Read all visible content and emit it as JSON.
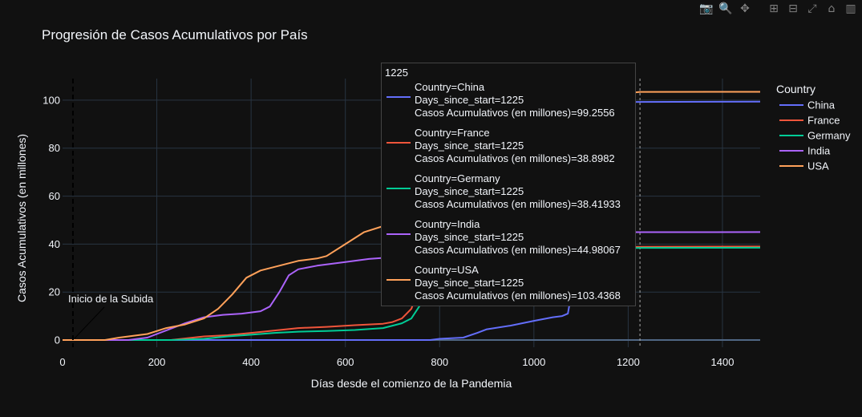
{
  "chart_data": {
    "type": "line",
    "title": "Progresión de Casos Acumulativos por País",
    "xlabel": "Días desde el comienzo de la Pandemia",
    "ylabel": "Casos Acumulativos (en millones)",
    "xlim": [
      0,
      1480
    ],
    "ylim": [
      -3,
      109
    ],
    "xticks": [
      0,
      200,
      400,
      600,
      800,
      1000,
      1200,
      1400
    ],
    "yticks": [
      0,
      20,
      40,
      60,
      80,
      100
    ],
    "grid": true,
    "legend": {
      "title": "Country",
      "placement": "right"
    },
    "annotations": [
      {
        "text": "Inicio de la Subida",
        "x": 22
      }
    ],
    "hover": {
      "x": 1225,
      "header": "1225",
      "entries": [
        {
          "country": "Country=China",
          "days": "Days_since_start=1225",
          "cases": "Casos Acumulativos (en millones)=99.2556"
        },
        {
          "country": "Country=France",
          "days": "Days_since_start=1225",
          "cases": "Casos Acumulativos (en millones)=38.8982"
        },
        {
          "country": "Country=Germany",
          "days": "Days_since_start=1225",
          "cases": "Casos Acumulativos (en millones)=38.41933"
        },
        {
          "country": "Country=India",
          "days": "Days_since_start=1225",
          "cases": "Casos Acumulativos (en millones)=44.98067"
        },
        {
          "country": "Country=USA",
          "days": "Days_since_start=1225",
          "cases": "Casos Acumulativos (en millones)=103.4368"
        }
      ]
    },
    "series": [
      {
        "name": "China",
        "color": "#636efa",
        "x": [
          0,
          780,
          800,
          850,
          880,
          900,
          950,
          1000,
          1040,
          1060,
          1072,
          1080,
          1085,
          1100,
          1140,
          1200,
          1225,
          1300,
          1480
        ],
        "y": [
          0,
          0,
          0.5,
          1,
          3,
          4.5,
          6,
          8,
          9.5,
          10,
          11,
          20,
          60,
          97,
          99,
          99.2,
          99.2556,
          99.3,
          99.4
        ]
      },
      {
        "name": "France",
        "color": "#ef553b",
        "x": [
          0,
          230,
          300,
          350,
          400,
          450,
          500,
          560,
          620,
          680,
          700,
          720,
          740,
          760,
          790,
          830,
          900,
          1000,
          1100,
          1225,
          1480
        ],
        "y": [
          0,
          0,
          1.5,
          2,
          3,
          4,
          5,
          5.5,
          6.2,
          6.8,
          7.5,
          9,
          13,
          24,
          34,
          37,
          38,
          38.5,
          38.7,
          38.8982,
          39
        ]
      },
      {
        "name": "Germany",
        "color": "#00cc96",
        "x": [
          0,
          230,
          300,
          350,
          400,
          450,
          500,
          560,
          620,
          680,
          700,
          720,
          740,
          760,
          790,
          830,
          900,
          1000,
          1100,
          1225,
          1480
        ],
        "y": [
          0,
          0,
          0.5,
          1.5,
          2.2,
          3,
          3.5,
          3.8,
          4.2,
          5,
          6,
          7,
          9,
          15,
          26,
          33,
          36.5,
          37.5,
          38.1,
          38.41933,
          38.5
        ]
      },
      {
        "name": "India",
        "color": "#ab63fa",
        "x": [
          0,
          140,
          180,
          220,
          260,
          300,
          340,
          380,
          420,
          440,
          460,
          480,
          500,
          540,
          600,
          650,
          700,
          800,
          900,
          1000,
          1100,
          1225,
          1480
        ],
        "y": [
          0,
          0,
          1,
          4,
          7,
          9.5,
          10.5,
          11,
          12,
          14,
          20,
          27,
          29.5,
          31,
          32.5,
          33.8,
          34.5,
          42,
          43.8,
          44.6,
          44.9,
          44.98067,
          45
        ]
      },
      {
        "name": "USA",
        "color": "#ffa15a",
        "x": [
          0,
          90,
          120,
          180,
          220,
          260,
          300,
          330,
          360,
          390,
          420,
          460,
          500,
          540,
          560,
          600,
          640,
          680,
          720,
          760,
          800,
          860,
          900,
          1000,
          1100,
          1225,
          1480
        ],
        "y": [
          0,
          0,
          1,
          2.5,
          5,
          6.5,
          9,
          13,
          19,
          26,
          29,
          31,
          33,
          34,
          35,
          40,
          45,
          47.5,
          53,
          66,
          78,
          85,
          90,
          98,
          101,
          103.4368,
          103.5
        ]
      }
    ]
  },
  "modebar": {
    "icons": [
      "camera-icon",
      "zoom-icon",
      "pan-icon",
      "zoom-in-icon",
      "zoom-out-icon",
      "autoscale-icon",
      "home-icon",
      "plotly-logo-icon"
    ],
    "glyphs": [
      "📷",
      "🔍",
      "✥",
      "⊞",
      "⊟",
      "⤢",
      "⌂",
      "▥"
    ]
  }
}
